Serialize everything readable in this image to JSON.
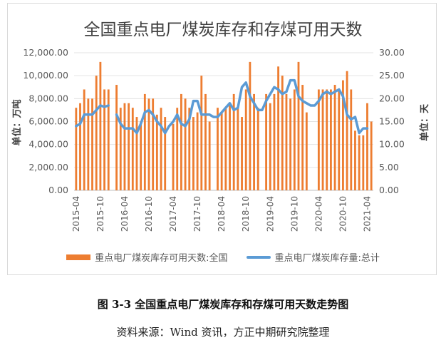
{
  "chart_data": {
    "type": "bar+line",
    "title": "全国重点电厂煤炭库存和存煤可用天数",
    "y_left_label": "单位：万吨",
    "y_right_label": "单位：天",
    "y_left_ticks": [
      "0.00",
      "2,000.00",
      "4,000.00",
      "6,000.00",
      "8,000.00",
      "10,000.00",
      "12,000.00"
    ],
    "y_right_ticks": [
      "0.00",
      "5.00",
      "10.00",
      "15.00",
      "20.00",
      "25.00",
      "30.00"
    ],
    "y_left_range": [
      0,
      12000
    ],
    "y_right_range": [
      0,
      30
    ],
    "x_tick_labels": [
      "2015-04",
      "2015-10",
      "2016-04",
      "2016-10",
      "2017-04",
      "2017-10",
      "2018-04",
      "2018-10",
      "2019-04",
      "2019-10",
      "2020-04",
      "2020-10",
      "2021-04"
    ],
    "months": [
      "2015-04",
      "2015-05",
      "2015-06",
      "2015-07",
      "2015-08",
      "2015-09",
      "2015-10",
      "2015-11",
      "2015-12",
      "2016-01",
      "2016-02",
      "2016-03",
      "2016-04",
      "2016-05",
      "2016-06",
      "2016-07",
      "2016-08",
      "2016-09",
      "2016-10",
      "2016-11",
      "2016-12",
      "2017-01",
      "2017-02",
      "2017-03",
      "2017-04",
      "2017-05",
      "2017-06",
      "2017-07",
      "2017-08",
      "2017-09",
      "2017-10",
      "2017-11",
      "2017-12",
      "2018-01",
      "2018-02",
      "2018-03",
      "2018-04",
      "2018-05",
      "2018-06",
      "2018-07",
      "2018-08",
      "2018-09",
      "2018-10",
      "2018-11",
      "2018-12",
      "2019-01",
      "2019-02",
      "2019-03",
      "2019-04",
      "2019-05",
      "2019-06",
      "2019-07",
      "2019-08",
      "2019-09",
      "2019-10",
      "2019-11",
      "2019-12",
      "2020-01",
      "2020-02",
      "2020-03",
      "2020-04",
      "2020-05",
      "2020-06",
      "2020-07",
      "2020-08",
      "2020-09",
      "2020-10",
      "2020-11",
      "2020-12",
      "2021-01",
      "2021-02",
      "2021-03",
      "2021-04",
      "2021-05"
    ],
    "series": [
      {
        "name": "重点电厂煤炭库存可用天数:全国",
        "type": "bar",
        "axis": "left",
        "color": "#ed7d31",
        "values": [
          7200,
          7600,
          8800,
          8000,
          8000,
          10000,
          11200,
          8800,
          8800,
          null,
          9200,
          7200,
          7600,
          7600,
          7200,
          6400,
          6000,
          8400,
          8000,
          8000,
          6600,
          7200,
          6400,
          null,
          5800,
          7200,
          8400,
          8000,
          7200,
          6400,
          6800,
          10000,
          8400,
          6000,
          null,
          7200,
          6800,
          7200,
          7600,
          8400,
          7200,
          6400,
          8800,
          11200,
          8400,
          7200,
          null,
          8400,
          7600,
          8400,
          10800,
          10000,
          8400,
          8000,
          8800,
          11200,
          9200,
          6800,
          null,
          null,
          8800,
          8800,
          8800,
          8800,
          9200,
          8800,
          9600,
          10400,
          8800,
          5200,
          4800,
          4800,
          7600,
          6000
        ]
      },
      {
        "name": "重点电厂煤炭库存量:总计",
        "type": "line",
        "axis": "right",
        "color": "#5b9bd5",
        "values": [
          14.0,
          14.5,
          16.5,
          16.5,
          16.5,
          17.5,
          18.5,
          18.2,
          18.5,
          null,
          16.5,
          14.5,
          13.5,
          13.5,
          13.5,
          12.5,
          14.5,
          17.0,
          17.5,
          16.5,
          15.0,
          14.0,
          12.5,
          14.0,
          15.0,
          16.5,
          14.5,
          14.0,
          15.5,
          19.5,
          19.5,
          16.5,
          16.5,
          16.5,
          16.0,
          16.0,
          17.0,
          18.0,
          19.0,
          17.5,
          18.0,
          22.5,
          23.5,
          20.5,
          19.0,
          17.5,
          17.5,
          19.5,
          21.0,
          22.5,
          22.0,
          21.0,
          21.5,
          24.0,
          24.0,
          20.5,
          19.5,
          19.0,
          18.5,
          18.5,
          19.5,
          21.0,
          21.5,
          21.0,
          21.5,
          22.0,
          20.5,
          16.5,
          15.5,
          16.0,
          12.5,
          13.5,
          13.5,
          null
        ]
      }
    ],
    "legend_position": "bottom",
    "grid": "horizontal"
  },
  "caption": "图 3-3 全国重点电厂煤炭库存和存煤可用天数走势图",
  "source": "资料来源：Wind 资讯，方正中期研究院整理"
}
